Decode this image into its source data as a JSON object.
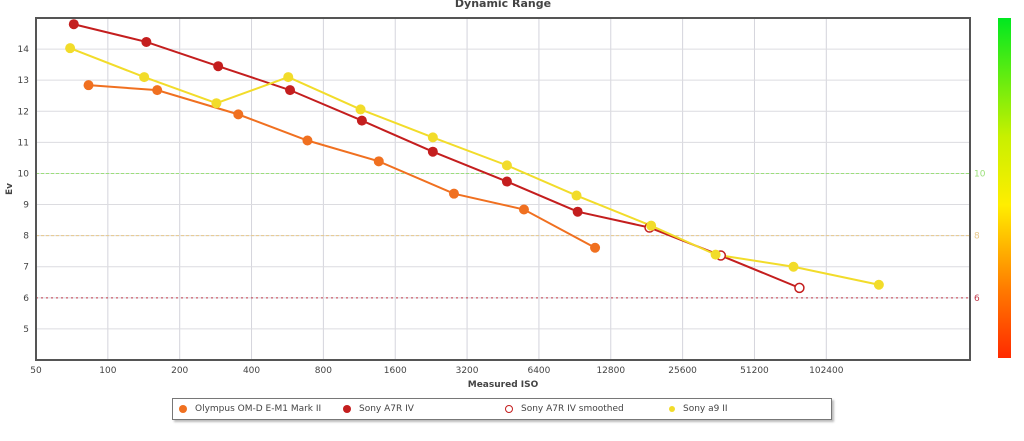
{
  "chart_data": {
    "type": "line",
    "title": "Dynamic Range",
    "xlabel": "Measured ISO",
    "ylabel": "Ev",
    "xscale": "log2",
    "xlim": [
      50,
      409600
    ],
    "ylim": [
      4,
      15
    ],
    "xticks": [
      "50",
      "100",
      "200",
      "400",
      "800",
      "1600",
      "3200",
      "6400",
      "12800",
      "25600",
      "51200",
      "102400"
    ],
    "yticks": [
      "5",
      "6",
      "7",
      "8",
      "9",
      "10",
      "11",
      "12",
      "13",
      "14"
    ],
    "grid": true,
    "reference_lines": [
      {
        "value": 10,
        "label": "10",
        "color": "#9be07a"
      },
      {
        "value": 8,
        "label": "8",
        "color": "#e8c98a"
      },
      {
        "value": 6,
        "label": "6",
        "color": "#c0394a"
      }
    ],
    "legend_position": "bottom",
    "series": [
      {
        "name": "Olympus OM-D E-M1 Mark II",
        "color": "#f07020",
        "x": [
          83,
          161,
          352,
          686,
          1365,
          2820,
          5540,
          11000
        ],
        "y": [
          12.84,
          12.68,
          11.9,
          11.06,
          10.39,
          9.35,
          8.84,
          7.61
        ]
      },
      {
        "name": "Sony A7R IV",
        "color": "#c41e1e",
        "x": [
          72,
          145,
          290,
          580,
          1160,
          2300,
          4700,
          9300
        ],
        "y": [
          14.8,
          14.23,
          13.45,
          12.68,
          11.7,
          10.7,
          9.74,
          8.77
        ]
      },
      {
        "name": "Sony A7R IV smoothed",
        "color": "#c41e1e",
        "hollow": true,
        "x": [
          18600,
          37000,
          79000
        ],
        "y": [
          8.26,
          7.36,
          6.32
        ]
      },
      {
        "name": "Sony a9 II",
        "color": "#f2dc2a",
        "x": [
          69.5,
          142,
          285,
          570,
          1145,
          2300,
          4700,
          9200,
          18900,
          35200,
          74600,
          170000
        ],
        "y": [
          14.03,
          13.1,
          12.26,
          13.1,
          12.06,
          11.16,
          10.26,
          9.29,
          8.32,
          7.39,
          7.0,
          6.42
        ]
      }
    ]
  }
}
